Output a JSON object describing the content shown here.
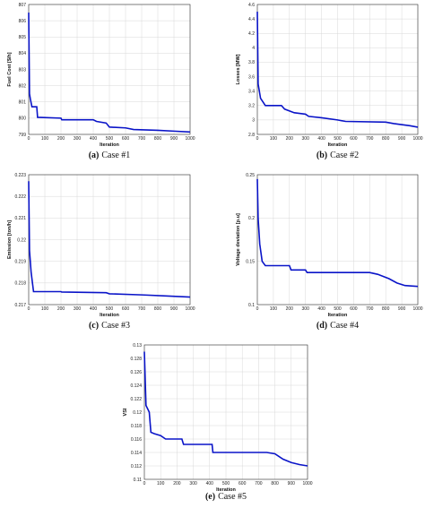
{
  "chart_data": [
    {
      "type": "line",
      "label": "(a)",
      "caption": "Case #1",
      "xlabel": "Iteration",
      "ylabel": "Fuel Cost [$/h]",
      "color": "#0a14c8",
      "grid": true,
      "x": [
        0,
        5,
        10,
        20,
        50,
        55,
        200,
        205,
        400,
        420,
        480,
        500,
        600,
        650,
        800,
        900,
        1000
      ],
      "values": [
        806.5,
        801.5,
        801.2,
        800.7,
        800.7,
        800.05,
        800,
        799.9,
        799.9,
        799.8,
        799.7,
        799.45,
        799.4,
        799.3,
        799.25,
        799.2,
        799.15
      ],
      "xlim": [
        0,
        1000
      ],
      "xticks": [
        0,
        100,
        200,
        300,
        400,
        500,
        600,
        700,
        800,
        900,
        1000
      ],
      "ylim": [
        799,
        807
      ],
      "yticks": [
        799,
        800,
        801,
        802,
        803,
        804,
        805,
        806,
        807
      ]
    },
    {
      "type": "line",
      "label": "(b)",
      "caption": "Case #2",
      "xlabel": "Iteration",
      "ylabel": "Losses [MW]",
      "color": "#0a14c8",
      "grid": true,
      "x": [
        0,
        5,
        20,
        50,
        150,
        170,
        230,
        300,
        320,
        400,
        500,
        550,
        800,
        850,
        950,
        1000
      ],
      "values": [
        4.5,
        3.5,
        3.3,
        3.2,
        3.2,
        3.15,
        3.1,
        3.08,
        3.05,
        3.03,
        3.0,
        2.98,
        2.97,
        2.95,
        2.92,
        2.9
      ],
      "xlim": [
        0,
        1000
      ],
      "xticks": [
        0,
        100,
        200,
        300,
        400,
        500,
        600,
        700,
        800,
        900,
        1000
      ],
      "ylim": [
        2.8,
        4.6
      ],
      "yticks": [
        2.8,
        3,
        3.2,
        3.4,
        3.6,
        3.8,
        4,
        4.2,
        4.4,
        4.6
      ]
    },
    {
      "type": "line",
      "label": "(c)",
      "caption": "Case #3",
      "xlabel": "Iteration",
      "ylabel": "Emission [ton/h]",
      "color": "#0a14c8",
      "grid": true,
      "x": [
        0,
        5,
        15,
        30,
        200,
        205,
        480,
        500,
        700,
        850,
        1000
      ],
      "values": [
        0.2227,
        0.2195,
        0.2185,
        0.2176,
        0.2176,
        0.21758,
        0.21755,
        0.2175,
        0.21745,
        0.2174,
        0.21735
      ],
      "xlim": [
        0,
        1000
      ],
      "xticks": [
        0,
        100,
        200,
        300,
        400,
        500,
        600,
        700,
        800,
        900,
        1000
      ],
      "ylim": [
        0.217,
        0.223
      ],
      "yticks": [
        0.217,
        0.218,
        0.219,
        0.22,
        0.221,
        0.222,
        0.223
      ]
    },
    {
      "type": "line",
      "label": "(d)",
      "caption": "Case #4",
      "xlabel": "Iteration",
      "ylabel": "Voltage deviation [p.u]",
      "color": "#0a14c8",
      "grid": true,
      "x": [
        0,
        5,
        15,
        30,
        50,
        200,
        210,
        300,
        310,
        700,
        750,
        820,
        870,
        920,
        1000
      ],
      "values": [
        0.245,
        0.2,
        0.17,
        0.15,
        0.145,
        0.145,
        0.14,
        0.14,
        0.137,
        0.137,
        0.135,
        0.13,
        0.125,
        0.122,
        0.121
      ],
      "xlim": [
        0,
        1000
      ],
      "xticks": [
        0,
        100,
        200,
        300,
        400,
        500,
        600,
        700,
        800,
        900,
        1000
      ],
      "ylim": [
        0.1,
        0.25
      ],
      "yticks": [
        0.1,
        0.15,
        0.2,
        0.25
      ]
    },
    {
      "type": "line",
      "label": "(e)",
      "caption": "Case #5",
      "xlabel": "Iteration",
      "ylabel": "VSI",
      "color": "#0a14c8",
      "grid": true,
      "x": [
        0,
        10,
        30,
        40,
        60,
        100,
        130,
        230,
        240,
        415,
        420,
        750,
        800,
        850,
        900,
        950,
        1000
      ],
      "values": [
        0.129,
        0.121,
        0.12,
        0.117,
        0.1168,
        0.1165,
        0.116,
        0.116,
        0.1152,
        0.1152,
        0.114,
        0.114,
        0.1138,
        0.113,
        0.1125,
        0.1122,
        0.112
      ],
      "xlim": [
        0,
        1000
      ],
      "xticks": [
        0,
        100,
        200,
        300,
        400,
        500,
        600,
        700,
        800,
        900,
        1000
      ],
      "ylim": [
        0.11,
        0.13
      ],
      "yticks": [
        0.11,
        0.112,
        0.114,
        0.116,
        0.118,
        0.12,
        0.122,
        0.124,
        0.126,
        0.128,
        0.13
      ]
    }
  ]
}
